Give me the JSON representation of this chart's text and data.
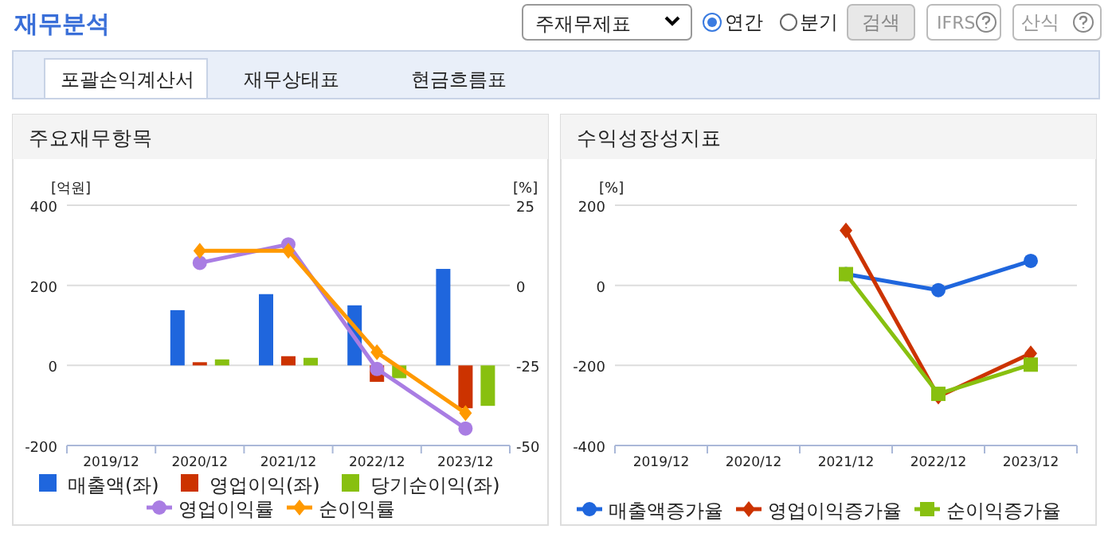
{
  "chart_data": [
    {
      "type": "other",
      "title": "재무분석",
      "annotations": [
        "주재무제표",
        "연간",
        "분기",
        "검색",
        "IFRS",
        "산식",
        "포괄손익계산서",
        "재무상태표",
        "현금흐름표"
      ]
    },
    {
      "type": "bar",
      "title": "주요재무항목",
      "ylabel": "[억원]",
      "y2label": "[%]",
      "categories": [
        "2019/12",
        "2020/12",
        "2021/12",
        "2022/12",
        "2023/12"
      ],
      "ylim": [
        -200,
        400
      ],
      "yticks": [
        -200,
        0,
        200,
        400
      ],
      "y2lim": [
        -50,
        25
      ],
      "y2ticks": [
        -50,
        -25,
        0,
        25
      ],
      "grid": "y",
      "legend": "bottom",
      "series": [
        {
          "name": "매출액(좌)",
          "color": "#1f66dd",
          "values": [
            null,
            138,
            178,
            150,
            241
          ]
        },
        {
          "name": "영업이익(좌)",
          "color": "#cc3300",
          "values": [
            null,
            8,
            23,
            -41,
            -107
          ]
        },
        {
          "name": "당기순이익(좌)",
          "color": "#88c010",
          "values": [
            null,
            15,
            19,
            -32,
            -101
          ]
        },
        {
          "name": "영업이익률",
          "type": "line",
          "axis": "y2",
          "marker": "circle",
          "color": "#a97de3",
          "values": [
            null,
            7.0,
            12.8,
            -26.1,
            -44.7
          ]
        },
        {
          "name": "순이익률",
          "type": "line",
          "axis": "y2",
          "marker": "diamond",
          "color": "#ff9900",
          "values": [
            null,
            10.8,
            10.8,
            -20.9,
            -39.9
          ]
        }
      ]
    },
    {
      "type": "line",
      "title": "수익성장성지표",
      "ylabel": "[%]",
      "categories": [
        "2019/12",
        "2020/12",
        "2021/12",
        "2022/12",
        "2023/12"
      ],
      "ylim": [
        -400,
        200
      ],
      "yticks": [
        -400,
        -200,
        0,
        200
      ],
      "grid": "y",
      "legend": "bottom",
      "series": [
        {
          "name": "매출액증가율",
          "marker": "circle",
          "color": "#1f66dd",
          "values": [
            null,
            null,
            28,
            -12,
            61
          ]
        },
        {
          "name": "영업이익증가율",
          "marker": "diamond",
          "color": "#cc3300",
          "values": [
            null,
            null,
            137,
            -278,
            -170
          ]
        },
        {
          "name": "순이익증가율",
          "marker": "square",
          "color": "#88c010",
          "values": [
            null,
            null,
            28,
            -271,
            -198
          ]
        }
      ]
    }
  ]
}
